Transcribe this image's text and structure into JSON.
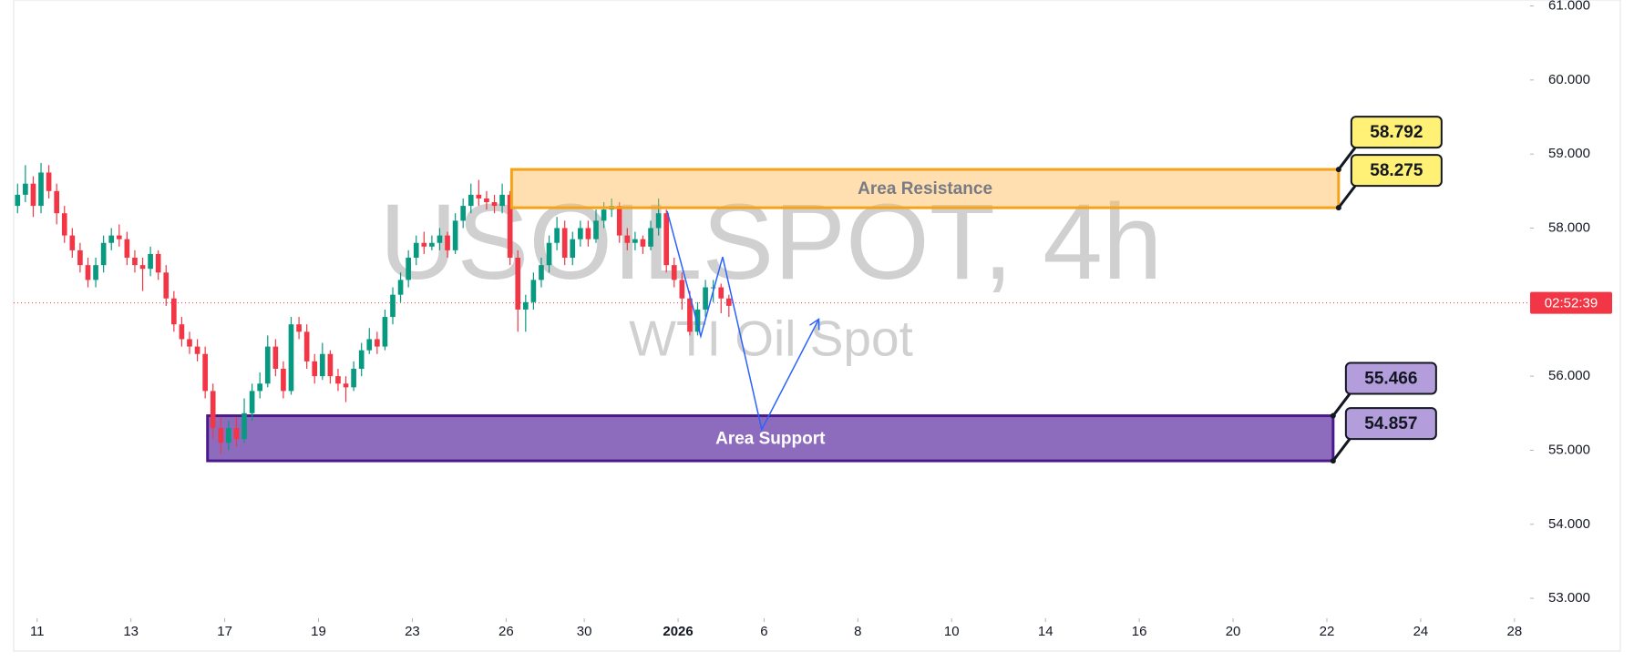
{
  "chart_data": {
    "type": "candlestick",
    "title": "USOILSPOT, 4h",
    "subtitle": "WTI Oil Spot",
    "up_color": "#089981",
    "down_color": "#f23645",
    "candles": [
      [
        58.3,
        58.6,
        58.2,
        58.45
      ],
      [
        58.45,
        58.85,
        58.35,
        58.6
      ],
      [
        58.6,
        58.7,
        58.15,
        58.3
      ],
      [
        58.3,
        58.88,
        58.2,
        58.75
      ],
      [
        58.75,
        58.85,
        58.4,
        58.5
      ],
      [
        58.5,
        58.6,
        58.05,
        58.2
      ],
      [
        58.2,
        58.3,
        57.8,
        57.9
      ],
      [
        57.9,
        58.0,
        57.6,
        57.7
      ],
      [
        57.7,
        57.8,
        57.4,
        57.5
      ],
      [
        57.5,
        57.6,
        57.2,
        57.3
      ],
      [
        57.3,
        57.6,
        57.2,
        57.5
      ],
      [
        57.5,
        57.9,
        57.4,
        57.8
      ],
      [
        57.8,
        58.0,
        57.7,
        57.9
      ],
      [
        57.9,
        58.05,
        57.75,
        57.85
      ],
      [
        57.85,
        57.95,
        57.5,
        57.6
      ],
      [
        57.6,
        57.7,
        57.4,
        57.5
      ],
      [
        57.5,
        57.6,
        57.15,
        57.45
      ],
      [
        57.45,
        57.75,
        57.35,
        57.65
      ],
      [
        57.65,
        57.7,
        57.3,
        57.4
      ],
      [
        57.4,
        57.5,
        56.95,
        57.05
      ],
      [
        57.05,
        57.15,
        56.6,
        56.7
      ],
      [
        56.7,
        56.8,
        56.4,
        56.5
      ],
      [
        56.5,
        56.6,
        56.3,
        56.4
      ],
      [
        56.4,
        56.5,
        56.2,
        56.3
      ],
      [
        56.3,
        56.4,
        55.7,
        55.8
      ],
      [
        55.8,
        55.9,
        55.15,
        55.3
      ],
      [
        55.3,
        55.45,
        54.95,
        55.1
      ],
      [
        55.1,
        55.4,
        55.0,
        55.3
      ],
      [
        55.3,
        55.45,
        55.05,
        55.15
      ],
      [
        55.15,
        55.7,
        55.1,
        55.5
      ],
      [
        55.5,
        55.9,
        55.4,
        55.8
      ],
      [
        55.8,
        56.05,
        55.7,
        55.9
      ],
      [
        55.9,
        56.55,
        55.85,
        56.4
      ],
      [
        56.4,
        56.5,
        56.0,
        56.1
      ],
      [
        56.1,
        56.2,
        55.7,
        55.8
      ],
      [
        55.8,
        56.8,
        55.75,
        56.7
      ],
      [
        56.7,
        56.8,
        56.5,
        56.6
      ],
      [
        56.6,
        56.7,
        56.1,
        56.2
      ],
      [
        56.2,
        56.3,
        55.9,
        56.0
      ],
      [
        56.0,
        56.45,
        55.95,
        56.3
      ],
      [
        56.3,
        56.35,
        55.9,
        56.0
      ],
      [
        56.0,
        56.1,
        55.8,
        55.9
      ],
      [
        55.9,
        56.0,
        55.65,
        55.85
      ],
      [
        55.85,
        56.2,
        55.8,
        56.1
      ],
      [
        56.1,
        56.45,
        56.0,
        56.35
      ],
      [
        56.35,
        56.65,
        56.3,
        56.5
      ],
      [
        56.5,
        56.6,
        56.3,
        56.4
      ],
      [
        56.4,
        56.9,
        56.35,
        56.8
      ],
      [
        56.8,
        57.2,
        56.7,
        57.1
      ],
      [
        57.1,
        57.4,
        57.0,
        57.3
      ],
      [
        57.3,
        57.7,
        57.2,
        57.6
      ],
      [
        57.6,
        57.9,
        57.5,
        57.8
      ],
      [
        57.8,
        57.95,
        57.65,
        57.75
      ],
      [
        57.75,
        57.9,
        57.7,
        57.8
      ],
      [
        57.8,
        58.0,
        57.7,
        57.9
      ],
      [
        57.9,
        57.95,
        57.6,
        57.7
      ],
      [
        57.7,
        58.2,
        57.65,
        58.1
      ],
      [
        58.1,
        58.4,
        58.0,
        58.3
      ],
      [
        58.3,
        58.6,
        58.2,
        58.45
      ],
      [
        58.45,
        58.65,
        58.3,
        58.4
      ],
      [
        58.4,
        58.5,
        58.25,
        58.35
      ],
      [
        58.35,
        58.45,
        58.2,
        58.3
      ],
      [
        58.3,
        58.6,
        58.2,
        58.45
      ],
      [
        58.45,
        58.5,
        57.5,
        57.6
      ],
      [
        57.6,
        57.7,
        56.6,
        56.9
      ],
      [
        56.9,
        57.1,
        56.6,
        57.0
      ],
      [
        57.0,
        57.4,
        56.9,
        57.3
      ],
      [
        57.3,
        57.6,
        57.2,
        57.5
      ],
      [
        57.5,
        57.9,
        57.4,
        57.8
      ],
      [
        57.8,
        58.15,
        57.7,
        58.0
      ],
      [
        58.0,
        58.1,
        57.5,
        57.6
      ],
      [
        57.6,
        57.95,
        57.5,
        57.85
      ],
      [
        57.85,
        58.1,
        57.75,
        58.0
      ],
      [
        58.0,
        58.1,
        57.75,
        57.85
      ],
      [
        57.85,
        58.25,
        57.8,
        58.1
      ],
      [
        58.1,
        58.35,
        58.0,
        58.25
      ],
      [
        58.25,
        58.4,
        58.15,
        58.3
      ],
      [
        58.3,
        58.35,
        57.8,
        57.9
      ],
      [
        57.9,
        58.0,
        57.7,
        57.8
      ],
      [
        57.8,
        57.95,
        57.7,
        57.85
      ],
      [
        57.85,
        57.9,
        57.65,
        57.75
      ],
      [
        57.75,
        58.1,
        57.7,
        58.0
      ],
      [
        58.0,
        58.4,
        57.9,
        58.2
      ],
      [
        58.2,
        58.25,
        57.4,
        57.5
      ],
      [
        57.5,
        57.6,
        57.2,
        57.3
      ],
      [
        57.3,
        57.4,
        56.9,
        57.05
      ],
      [
        57.05,
        57.15,
        56.55,
        56.6
      ],
      [
        56.6,
        57.0,
        56.55,
        56.9
      ],
      [
        56.9,
        57.3,
        56.8,
        57.2
      ],
      [
        57.2,
        57.3,
        57.0,
        57.2
      ],
      [
        57.2,
        57.25,
        56.85,
        57.05
      ],
      [
        57.05,
        57.1,
        56.8,
        56.95
      ]
    ],
    "xlim": [
      0,
      194
    ],
    "xticks": [
      {
        "value": 3,
        "label": "11"
      },
      {
        "value": 15,
        "label": "13"
      },
      {
        "value": 27,
        "label": "17"
      },
      {
        "value": 39,
        "label": "19"
      },
      {
        "value": 51,
        "label": "23"
      },
      {
        "value": 63,
        "label": "26"
      },
      {
        "value": 73,
        "label": "30"
      },
      {
        "value": 85,
        "label": "2026"
      },
      {
        "value": 96,
        "label": "6"
      },
      {
        "value": 108,
        "label": "8"
      },
      {
        "value": 120,
        "label": "10"
      },
      {
        "value": 132,
        "label": "14"
      },
      {
        "value": 144,
        "label": "16"
      },
      {
        "value": 156,
        "label": "20"
      },
      {
        "value": 168,
        "label": "22"
      },
      {
        "value": 180,
        "label": "24"
      },
      {
        "value": 192,
        "label": "28"
      }
    ],
    "ylim": [
      52.78,
      61.08
    ],
    "yticks": [
      {
        "value": 53,
        "label": "53.000"
      },
      {
        "value": 54,
        "label": "54.000"
      },
      {
        "value": 55,
        "label": "55.000"
      },
      {
        "value": 56,
        "label": "56.000"
      },
      {
        "value": 58,
        "label": "58.000"
      },
      {
        "value": 59,
        "label": "59.000"
      },
      {
        "value": 60,
        "label": "60.000"
      },
      {
        "value": 61,
        "label": "61.000"
      }
    ],
    "current_price": {
      "value": 56.99,
      "label": "02:52:39"
    },
    "zones": [
      {
        "name": "Area Support",
        "low": 54.857,
        "high": 55.466,
        "start": 24.8,
        "end": 168.8,
        "color": "#8e6cbd",
        "border": "#4a1a8c",
        "text_color": "#ffffff",
        "tag_color": "#b39ddb"
      },
      {
        "name": "Area Resistance",
        "low": 58.275,
        "high": 58.792,
        "start": 63.7,
        "end": 169.5,
        "color": "rgba(255,183,77,0.45)",
        "border": "#f5a21b",
        "text_color": "#787b86",
        "tag_color": "#fff176"
      }
    ],
    "projection": {
      "x": [
        83.6,
        87.9,
        90.7,
        95.7,
        103
      ],
      "y": [
        58.23,
        56.54,
        57.61,
        55.28,
        56.77
      ],
      "color": "#2962ff"
    }
  }
}
